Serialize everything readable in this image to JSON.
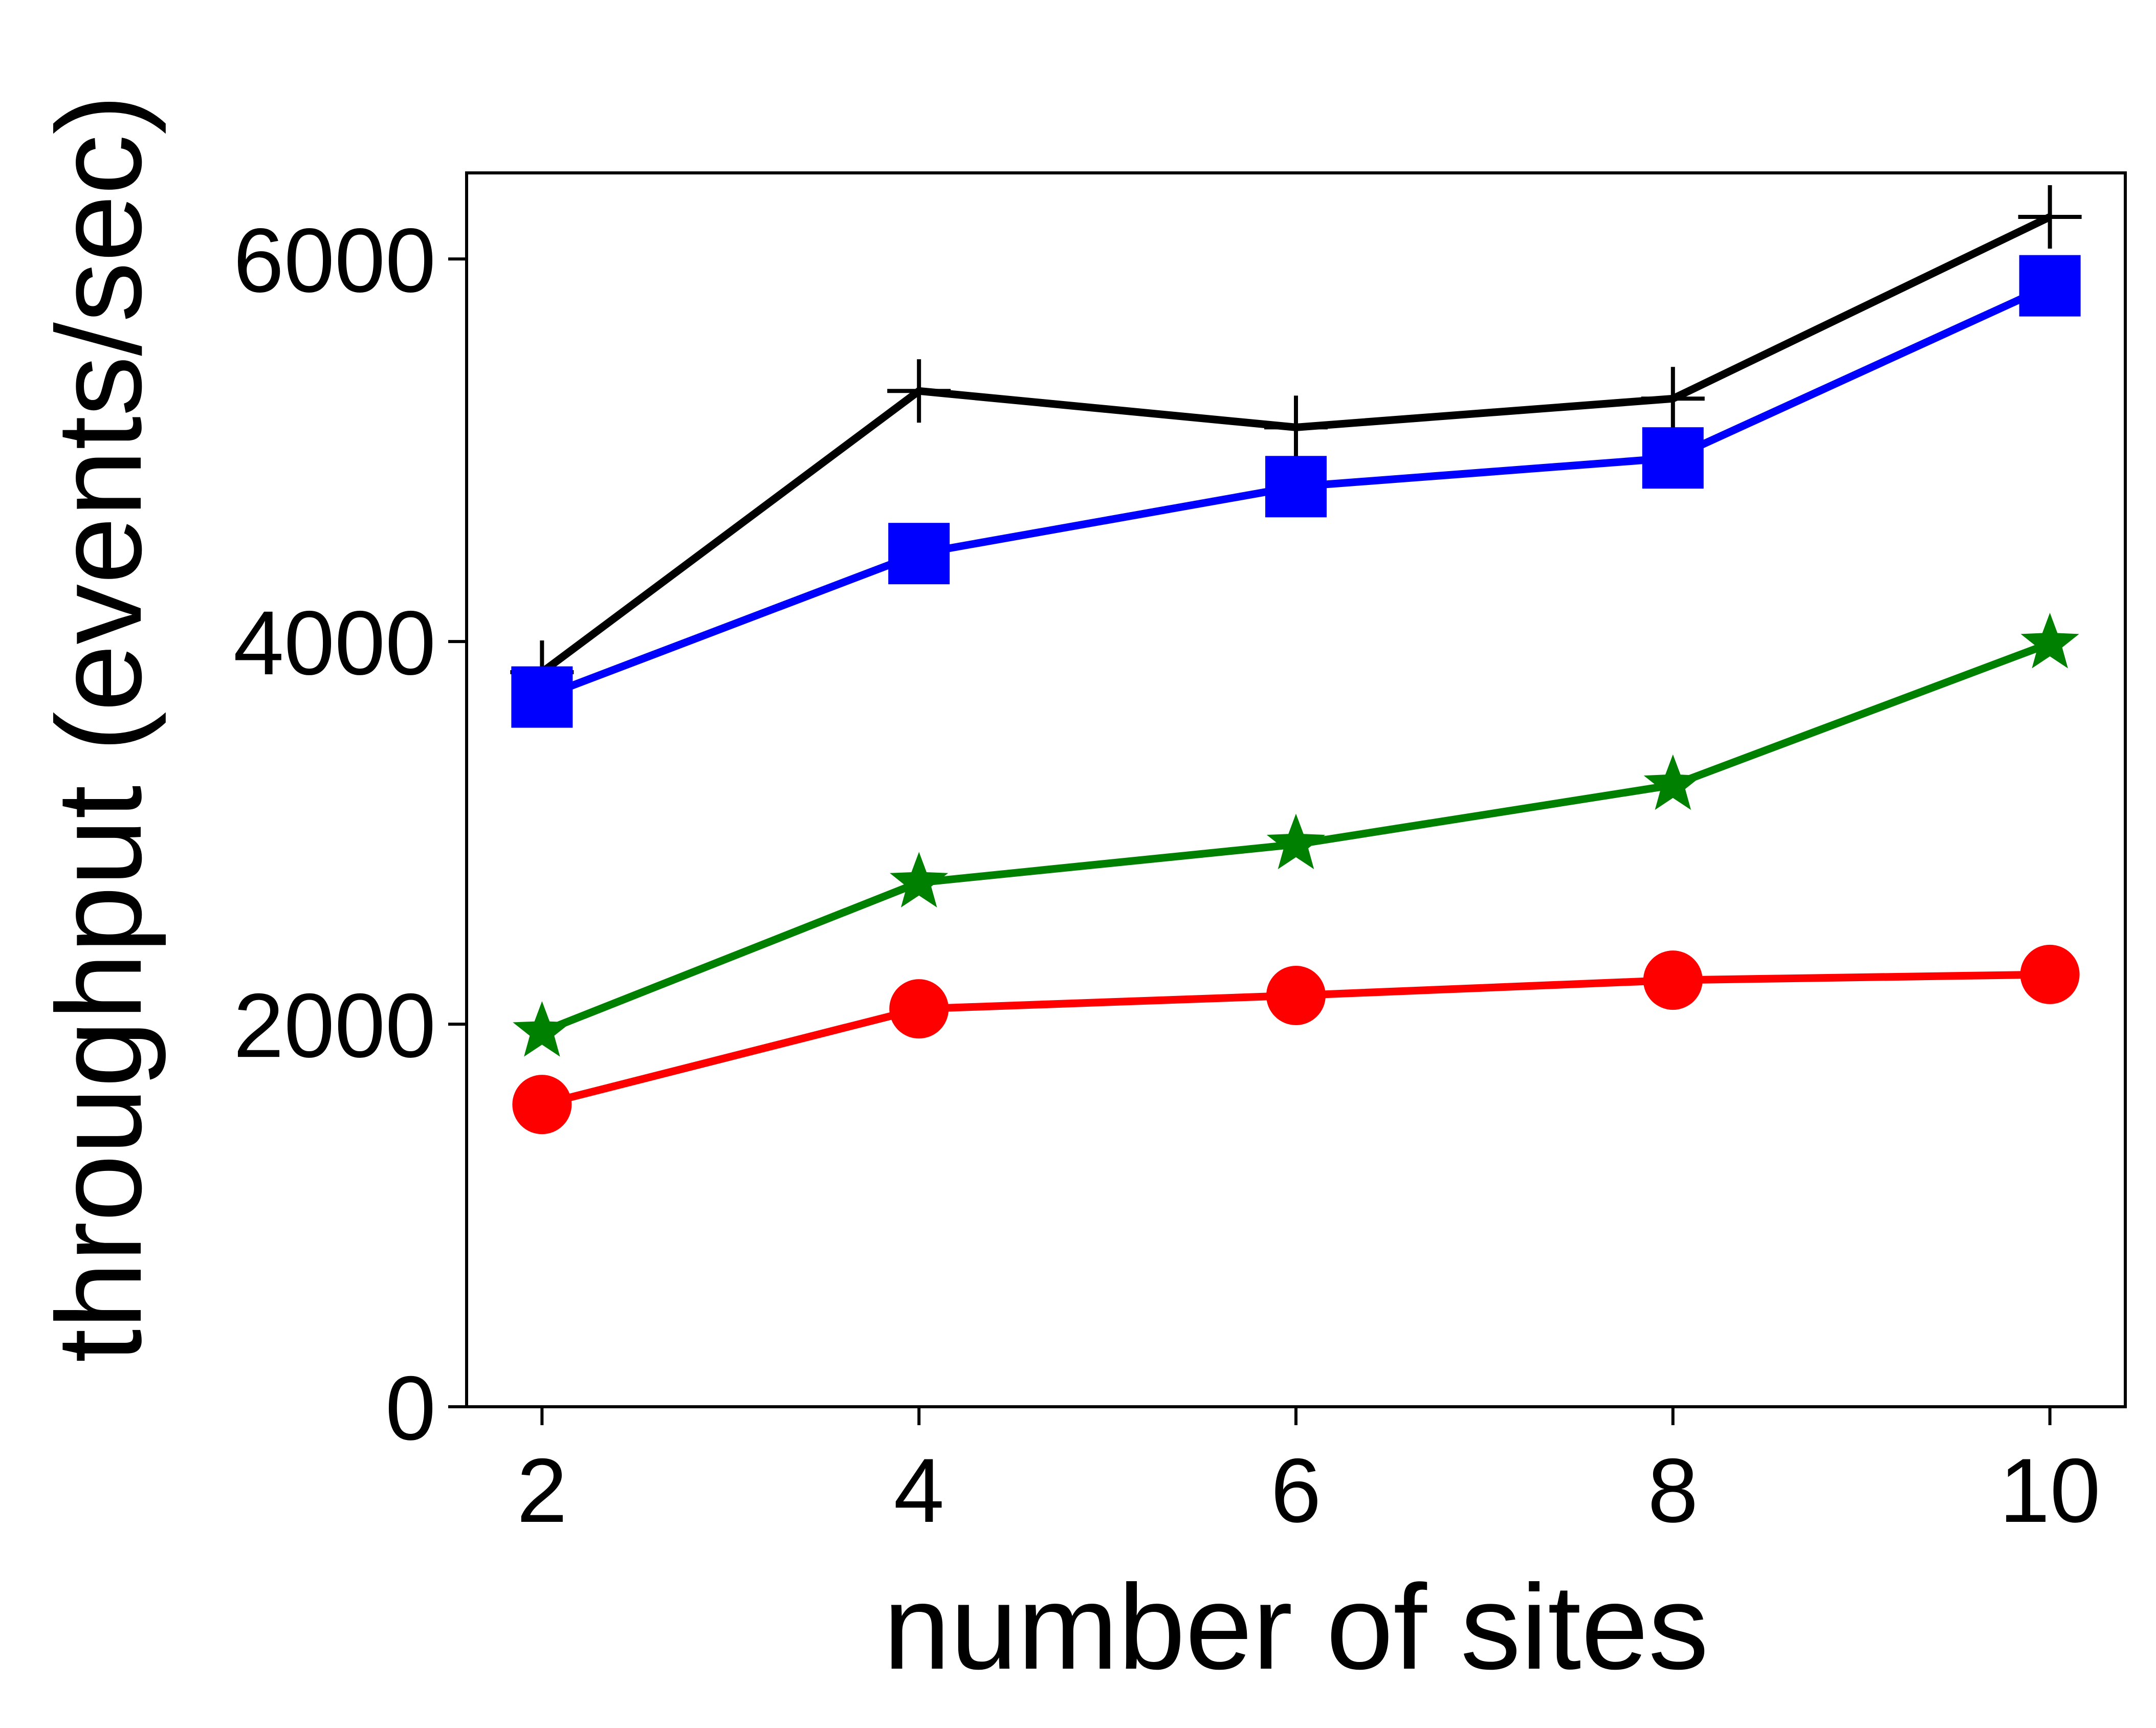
{
  "chart_data": {
    "type": "line",
    "title": "",
    "xlabel": "number of sites",
    "ylabel": "throughput (events/sec)",
    "x": [
      2,
      4,
      6,
      8,
      10
    ],
    "xlim": [
      1.6,
      10.4
    ],
    "ylim": [
      0,
      6450
    ],
    "xticks": [
      2,
      4,
      6,
      8,
      10
    ],
    "yticks": [
      0,
      2000,
      4000,
      6000
    ],
    "grid": false,
    "legend": "none",
    "series": [
      {
        "color": "#000000",
        "marker": "plus",
        "values": [
          3840,
          5310,
          5120,
          5270,
          6220
        ]
      },
      {
        "color": "#0000ff",
        "marker": "square",
        "values": [
          3710,
          4460,
          4810,
          4960,
          5860
        ]
      },
      {
        "color": "#008000",
        "marker": "star",
        "values": [
          1960,
          2740,
          2940,
          3250,
          3990
        ]
      },
      {
        "color": "#ff0000",
        "marker": "circle",
        "values": [
          1580,
          2080,
          2150,
          2230,
          2260
        ]
      }
    ]
  }
}
